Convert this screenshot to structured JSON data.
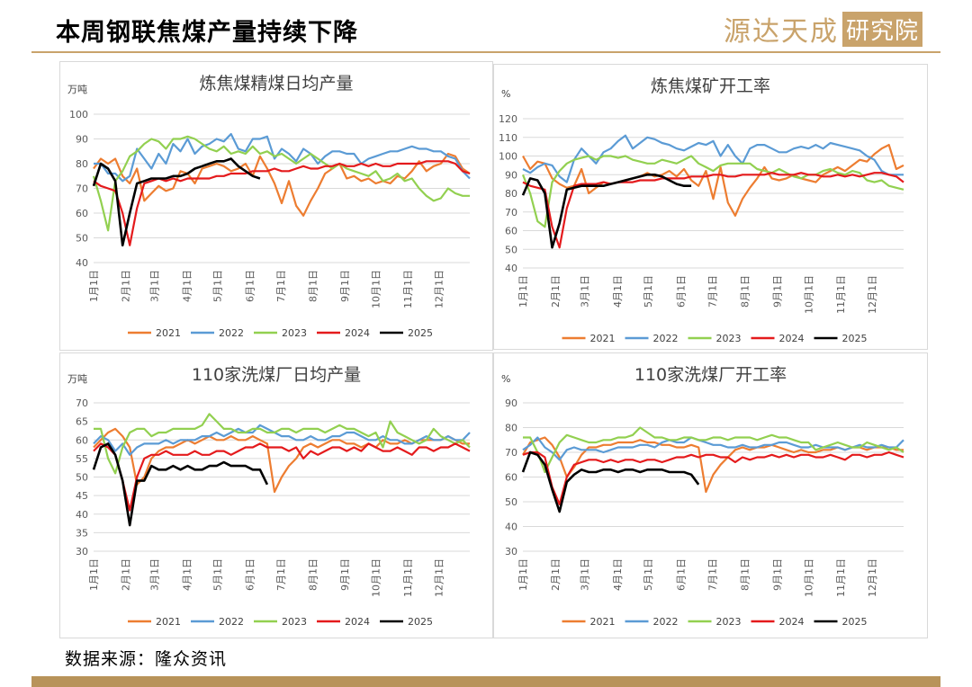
{
  "header": {
    "title": "本周钢联焦煤产量持续下降",
    "brand_text": "源达天成",
    "brand_badge": "研究院"
  },
  "source": "数据来源：隆众资讯",
  "colors": {
    "2021": "#ed7d31",
    "2022": "#5b9bd5",
    "2023": "#92d050",
    "2024": "#e41a1c",
    "2025": "#000000"
  },
  "chart_data": [
    {
      "type": "line",
      "title": "炼焦煤精煤日均产量",
      "unit": "万吨",
      "ylim": [
        40,
        100
      ],
      "yticks": [
        40,
        50,
        60,
        70,
        80,
        90,
        100
      ],
      "x_labels": [
        "1月1日",
        "2月1日",
        "3月1日",
        "4月1日",
        "5月1日",
        "6月1日",
        "7月1日",
        "8月1日",
        "9月1日",
        "10月1日",
        "11月1日",
        "12月1日"
      ],
      "legend_position": "bottom",
      "series": [
        {
          "name": "2021",
          "values": [
            78,
            82,
            80,
            82,
            75,
            72,
            78,
            65,
            68,
            71,
            69,
            70,
            77,
            76,
            72,
            78,
            79,
            80,
            79,
            77,
            78,
            80,
            75,
            83,
            78,
            72,
            64,
            73,
            63,
            59,
            65,
            70,
            76,
            78,
            80,
            74,
            75,
            73,
            74,
            72,
            73,
            72,
            75,
            74,
            77,
            81,
            77,
            79,
            80,
            84,
            83,
            78,
            76
          ]
        },
        {
          "name": "2022",
          "values": [
            80,
            80,
            76,
            76,
            73,
            75,
            86,
            82,
            78,
            84,
            80,
            88,
            85,
            90,
            84,
            87,
            88,
            90,
            89,
            92,
            86,
            85,
            90,
            90,
            91,
            82,
            86,
            84,
            81,
            86,
            84,
            80,
            83,
            85,
            85,
            84,
            84,
            80,
            82,
            83,
            84,
            85,
            85,
            86,
            87,
            86,
            86,
            85,
            85,
            83,
            82,
            77,
            74
          ]
        },
        {
          "name": "2023",
          "values": [
            75,
            65,
            53,
            73,
            77,
            83,
            85,
            88,
            90,
            89,
            86,
            90,
            90,
            91,
            90,
            88,
            86,
            85,
            87,
            84,
            85,
            84,
            87,
            84,
            85,
            83,
            84,
            82,
            80,
            82,
            84,
            82,
            80,
            78,
            80,
            78,
            77,
            76,
            75,
            77,
            73,
            74,
            76,
            73,
            74,
            70,
            67,
            65,
            66,
            70,
            68,
            67,
            67
          ]
        },
        {
          "name": "2024",
          "values": [
            73,
            71,
            70,
            69,
            60,
            47,
            62,
            72,
            73,
            74,
            73,
            74,
            73,
            74,
            74,
            74,
            74,
            75,
            75,
            76,
            76,
            76,
            77,
            77,
            77,
            78,
            77,
            77,
            78,
            79,
            78,
            78,
            79,
            79,
            80,
            79,
            79,
            80,
            79,
            80,
            79,
            79,
            80,
            80,
            80,
            80,
            81,
            81,
            81,
            81,
            80,
            77,
            76
          ]
        },
        {
          "name": "2025",
          "values": [
            71,
            80,
            78,
            73,
            47,
            60,
            72,
            73,
            74,
            74,
            74,
            75,
            75,
            76,
            78,
            79,
            80,
            81,
            81,
            82,
            79,
            77,
            75,
            74
          ]
        }
      ]
    },
    {
      "type": "line",
      "title": "炼焦煤矿开工率",
      "unit": "%",
      "ylim": [
        40,
        120
      ],
      "yticks": [
        40,
        50,
        60,
        70,
        80,
        90,
        100,
        110,
        120
      ],
      "x_labels": [
        "1月1日",
        "2月1日",
        "3月1日",
        "4月1日",
        "5月1日",
        "6月1日",
        "7月1日",
        "8月1日",
        "9月1日",
        "10月1日",
        "11月1日",
        "12月1日"
      ],
      "legend_position": "bottom",
      "series": [
        {
          "name": "2021",
          "values": [
            100,
            93,
            97,
            96,
            88,
            85,
            83,
            84,
            93,
            80,
            83,
            86,
            85,
            86,
            87,
            88,
            89,
            91,
            89,
            90,
            92,
            89,
            93,
            87,
            84,
            92,
            77,
            94,
            75,
            68,
            77,
            83,
            88,
            94,
            88,
            87,
            88,
            90,
            88,
            87,
            86,
            90,
            92,
            94,
            92,
            95,
            98,
            97,
            101,
            104,
            106,
            93,
            95
          ]
        },
        {
          "name": "2022",
          "values": [
            93,
            91,
            94,
            96,
            95,
            89,
            86,
            98,
            104,
            100,
            96,
            102,
            104,
            108,
            111,
            104,
            107,
            110,
            109,
            107,
            106,
            104,
            103,
            105,
            107,
            106,
            108,
            100,
            106,
            100,
            96,
            104,
            106,
            106,
            104,
            102,
            102,
            104,
            105,
            104,
            106,
            104,
            107,
            106,
            105,
            104,
            103,
            100,
            98,
            92,
            90,
            90,
            90
          ]
        },
        {
          "name": "2023",
          "values": [
            90,
            80,
            65,
            62,
            86,
            92,
            96,
            98,
            99,
            100,
            98,
            100,
            100,
            99,
            100,
            98,
            97,
            96,
            96,
            98,
            97,
            96,
            98,
            100,
            96,
            94,
            92,
            95,
            96,
            96,
            96,
            96,
            93,
            92,
            91,
            93,
            91,
            89,
            88,
            90,
            90,
            92,
            93,
            91,
            90,
            92,
            91,
            87,
            86,
            87,
            84,
            83,
            82
          ]
        },
        {
          "name": "2024",
          "values": [
            86,
            84,
            83,
            82,
            62,
            51,
            72,
            84,
            85,
            85,
            85,
            86,
            85,
            86,
            86,
            86,
            87,
            87,
            87,
            88,
            88,
            88,
            88,
            89,
            89,
            89,
            90,
            90,
            89,
            89,
            90,
            90,
            90,
            90,
            91,
            90,
            90,
            90,
            91,
            90,
            90,
            89,
            89,
            90,
            89,
            90,
            89,
            90,
            91,
            91,
            90,
            89,
            86
          ]
        },
        {
          "name": "2025",
          "values": [
            79,
            88,
            87,
            80,
            51,
            64,
            82,
            83,
            84,
            84,
            84,
            84,
            85,
            86,
            87,
            88,
            89,
            90,
            90,
            89,
            87,
            85,
            84,
            84
          ]
        }
      ]
    },
    {
      "type": "line",
      "title": "110家洗煤厂日均产量",
      "unit": "万吨",
      "ylim": [
        30,
        70
      ],
      "yticks": [
        30,
        35,
        40,
        45,
        50,
        55,
        60,
        65,
        70
      ],
      "x_labels": [
        "1月1日",
        "2月1日",
        "3月1日",
        "4月1日",
        "5月1日",
        "6月1日",
        "7月1日",
        "8月1日",
        "9月1日",
        "10月1日",
        "11月1日",
        "12月1日"
      ],
      "legend_position": "bottom",
      "series": [
        {
          "name": "2021",
          "values": [
            58,
            60,
            62,
            63,
            61,
            58,
            48,
            50,
            55,
            57,
            58,
            58,
            59,
            60,
            59,
            60,
            61,
            60,
            60,
            61,
            60,
            60,
            61,
            60,
            59,
            46,
            50,
            53,
            55,
            58,
            59,
            58,
            59,
            60,
            60,
            59,
            59,
            58,
            59,
            58,
            60,
            59,
            59,
            60,
            59,
            60,
            60,
            60,
            60,
            61,
            60,
            59,
            59
          ]
        },
        {
          "name": "2022",
          "values": [
            59,
            61,
            60,
            57,
            59,
            56,
            58,
            59,
            59,
            59,
            60,
            59,
            60,
            60,
            60,
            61,
            61,
            62,
            61,
            62,
            63,
            62,
            62,
            64,
            63,
            62,
            61,
            61,
            60,
            60,
            61,
            60,
            60,
            61,
            61,
            62,
            62,
            61,
            60,
            60,
            61,
            60,
            60,
            59,
            59,
            60,
            61,
            60,
            60,
            61,
            60,
            60,
            62
          ]
        },
        {
          "name": "2023",
          "values": [
            63,
            63,
            55,
            51,
            58,
            62,
            63,
            63,
            61,
            62,
            62,
            63,
            63,
            63,
            63,
            64,
            67,
            65,
            63,
            63,
            62,
            62,
            63,
            63,
            62,
            62,
            63,
            63,
            62,
            63,
            63,
            63,
            62,
            63,
            64,
            63,
            63,
            62,
            61,
            62,
            58,
            65,
            62,
            61,
            60,
            59,
            60,
            63,
            61,
            60,
            59,
            60,
            58
          ]
        },
        {
          "name": "2024",
          "values": [
            57,
            59,
            58,
            56,
            49,
            41,
            50,
            55,
            56,
            56,
            57,
            56,
            56,
            56,
            57,
            56,
            56,
            57,
            57,
            56,
            57,
            58,
            58,
            59,
            58,
            58,
            58,
            57,
            58,
            55,
            57,
            56,
            57,
            58,
            58,
            57,
            58,
            57,
            59,
            58,
            57,
            57,
            58,
            57,
            56,
            58,
            58,
            57,
            58,
            58,
            59,
            58,
            57
          ]
        },
        {
          "name": "2025",
          "values": [
            52,
            58,
            59,
            56,
            49,
            37,
            49,
            49,
            53,
            52,
            52,
            53,
            52,
            53,
            52,
            52,
            53,
            53,
            54,
            53,
            53,
            53,
            52,
            52,
            48
          ]
        }
      ]
    },
    {
      "type": "line",
      "title": "110家洗煤厂开工率",
      "unit": "%",
      "ylim": [
        30,
        90
      ],
      "yticks": [
        30,
        40,
        50,
        60,
        70,
        80,
        90
      ],
      "x_labels": [
        "1月1日",
        "2月1日",
        "3月1日",
        "4月1日",
        "5月1日",
        "6月1日",
        "7月1日",
        "8月1日",
        "9月1日",
        "10月1日",
        "11月1日",
        "12月1日"
      ],
      "legend_position": "bottom",
      "series": [
        {
          "name": "2021",
          "values": [
            69,
            74,
            75,
            76,
            73,
            68,
            60,
            64,
            69,
            72,
            72,
            73,
            73,
            74,
            74,
            74,
            75,
            74,
            74,
            73,
            73,
            72,
            72,
            73,
            72,
            54,
            61,
            65,
            68,
            71,
            72,
            71,
            72,
            72,
            73,
            72,
            71,
            70,
            71,
            70,
            70,
            71,
            71,
            72,
            71,
            72,
            72,
            71,
            72,
            72,
            72,
            71,
            71
          ]
        },
        {
          "name": "2022",
          "values": [
            71,
            73,
            76,
            72,
            70,
            67,
            71,
            72,
            71,
            71,
            71,
            70,
            71,
            72,
            72,
            72,
            73,
            73,
            72,
            74,
            75,
            74,
            74,
            76,
            75,
            74,
            73,
            73,
            72,
            72,
            73,
            72,
            72,
            73,
            73,
            74,
            74,
            73,
            72,
            72,
            73,
            72,
            72,
            72,
            71,
            72,
            73,
            72,
            72,
            73,
            72,
            72,
            75
          ]
        },
        {
          "name": "2023",
          "values": [
            76,
            76,
            70,
            62,
            68,
            74,
            77,
            76,
            75,
            74,
            74,
            75,
            75,
            76,
            76,
            77,
            80,
            78,
            76,
            76,
            75,
            75,
            76,
            76,
            75,
            75,
            76,
            76,
            75,
            76,
            76,
            76,
            75,
            76,
            77,
            76,
            76,
            75,
            74,
            74,
            71,
            72,
            73,
            74,
            73,
            72,
            72,
            74,
            73,
            72,
            71,
            72,
            70
          ]
        },
        {
          "name": "2024",
          "values": [
            69,
            70,
            70,
            68,
            56,
            49,
            60,
            65,
            66,
            67,
            67,
            66,
            67,
            66,
            67,
            67,
            66,
            67,
            67,
            66,
            67,
            68,
            68,
            69,
            68,
            69,
            69,
            68,
            68,
            66,
            68,
            67,
            68,
            68,
            69,
            68,
            69,
            68,
            69,
            69,
            68,
            68,
            69,
            68,
            67,
            69,
            69,
            68,
            69,
            69,
            70,
            69,
            68
          ]
        },
        {
          "name": "2025",
          "values": [
            62,
            70,
            69,
            65,
            55,
            46,
            58,
            61,
            63,
            62,
            62,
            63,
            63,
            62,
            63,
            63,
            62,
            63,
            63,
            63,
            62,
            62,
            62,
            61,
            57
          ]
        }
      ]
    }
  ]
}
